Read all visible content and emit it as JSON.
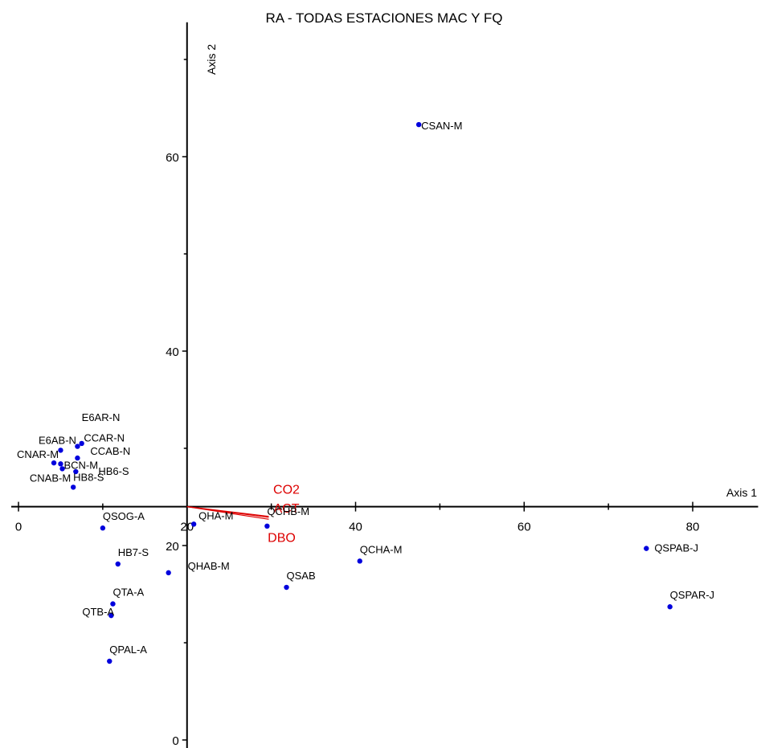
{
  "chart_data": {
    "type": "scatter",
    "title": "RA - TODAS ESTACIONES MAC Y FQ",
    "xlabel": "Axis 1",
    "ylabel": "Axis 2",
    "xlim": [
      -2,
      87
    ],
    "ylim": [
      -1,
      73
    ],
    "x_ticks": [
      0,
      20,
      40,
      60,
      80
    ],
    "y_ticks": [
      0,
      20,
      40,
      60
    ],
    "axis_origin": [
      20,
      24
    ],
    "grid": false,
    "colors": {
      "points": "#0000dd",
      "vectors": "#dd0000",
      "axes": "#000000"
    },
    "points": [
      {
        "label": "CSAN-M",
        "x": 47.5,
        "y": 63.3
      },
      {
        "label": "E6AR-N",
        "x": 7.5,
        "y": 30.5
      },
      {
        "label": "E6AB-N",
        "x": 5.0,
        "y": 29.8
      },
      {
        "label": "CCAR-N",
        "x": 7.0,
        "y": 30.2
      },
      {
        "label": "CCAB-N",
        "x": 7.0,
        "y": 29.0
      },
      {
        "label": "CNAR-M",
        "x": 4.2,
        "y": 28.5
      },
      {
        "label": "BCN-M",
        "x": 5.0,
        "y": 28.4
      },
      {
        "label": "CNAB-M",
        "x": 5.2,
        "y": 27.9
      },
      {
        "label": "HB6-S",
        "x": 6.8,
        "y": 27.6
      },
      {
        "label": "HB8-S",
        "x": 6.5,
        "y": 26.0
      },
      {
        "label": "QSOG-A",
        "x": 10.0,
        "y": 21.8
      },
      {
        "label": "QHA-M",
        "x": 20.8,
        "y": 22.2
      },
      {
        "label": "QCHB-M",
        "x": 29.5,
        "y": 22.0
      },
      {
        "label": "QCHA-M",
        "x": 40.5,
        "y": 18.4
      },
      {
        "label": "QSPAB-J",
        "x": 74.5,
        "y": 19.7
      },
      {
        "label": "QSPAR-J",
        "x": 77.3,
        "y": 13.7
      },
      {
        "label": "HB7-S",
        "x": 11.8,
        "y": 18.1
      },
      {
        "label": "QHAB-M",
        "x": 17.8,
        "y": 17.2
      },
      {
        "label": "QSAB",
        "x": 31.8,
        "y": 15.7
      },
      {
        "label": "QTA-A",
        "x": 11.2,
        "y": 14.0
      },
      {
        "label": "QTB-A",
        "x": 11.0,
        "y": 12.8
      },
      {
        "label": "QPAL-A",
        "x": 10.8,
        "y": 8.1
      }
    ],
    "vectors": [
      {
        "label": "CO2",
        "x": 29.7,
        "y": 23.0
      },
      {
        "label": "ACT",
        "x": 29.7,
        "y": 22.9
      },
      {
        "label": "DBO",
        "x": 29.7,
        "y": 22.7
      }
    ]
  }
}
